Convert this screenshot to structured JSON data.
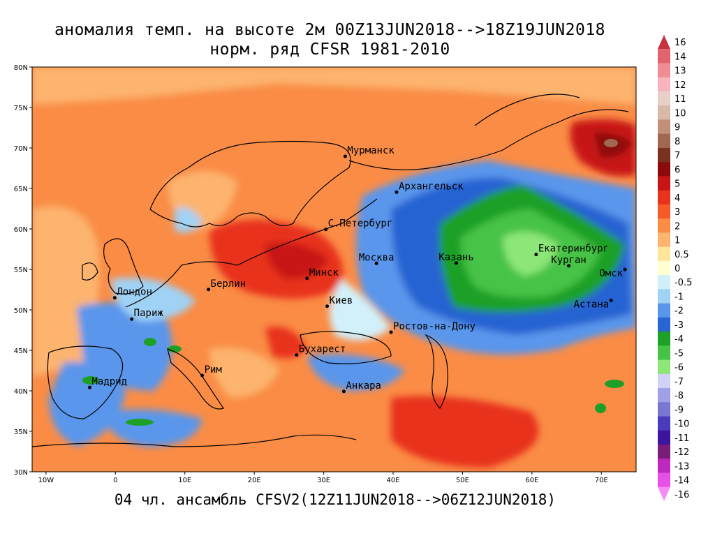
{
  "title_line1": "аномалия темп. на высоте 2м 00Z13JUN2018-->18Z19JUN2018",
  "title_line2": "норм. ряд CFSR 1981-2010",
  "footer": "04 чл. ансамбль CFSV2(12Z11JUN2018-->06Z12JUN2018)",
  "lat_labels": [
    "80N",
    "75N",
    "70N",
    "65N",
    "60N",
    "55N",
    "50N",
    "45N",
    "40N",
    "35N",
    "30N"
  ],
  "lon_labels": [
    "10W",
    "0",
    "10E",
    "20E",
    "30E",
    "40E",
    "50E",
    "60E",
    "70E"
  ],
  "cities": [
    {
      "name": "Мурманск",
      "lon": 33.1,
      "lat": 68.97
    },
    {
      "name": "Архангельск",
      "lon": 40.5,
      "lat": 64.54
    },
    {
      "name": "С.Петербург",
      "lon": 30.3,
      "lat": 59.94
    },
    {
      "name": "Москва",
      "lon": 37.6,
      "lat": 55.75
    },
    {
      "name": "Казань",
      "lon": 49.1,
      "lat": 55.79
    },
    {
      "name": "Екатеринбург",
      "lon": 60.6,
      "lat": 56.84
    },
    {
      "name": "Курган",
      "lon": 65.3,
      "lat": 55.44
    },
    {
      "name": "Омск",
      "lon": 73.4,
      "lat": 54.99
    },
    {
      "name": "Астана",
      "lon": 71.4,
      "lat": 51.17
    },
    {
      "name": "Минск",
      "lon": 27.6,
      "lat": 53.9
    },
    {
      "name": "Берлин",
      "lon": 13.4,
      "lat": 52.52
    },
    {
      "name": "Лондон",
      "lon": -0.1,
      "lat": 51.5
    },
    {
      "name": "Париж",
      "lon": 2.35,
      "lat": 48.86
    },
    {
      "name": "Киев",
      "lon": 30.5,
      "lat": 50.45
    },
    {
      "name": "Ростов-на-Дону",
      "lon": 39.7,
      "lat": 47.24
    },
    {
      "name": "Бухарест",
      "lon": 26.1,
      "lat": 44.43
    },
    {
      "name": "Рим",
      "lon": 12.5,
      "lat": 41.9
    },
    {
      "name": "Мадрид",
      "lon": -3.7,
      "lat": 40.42
    },
    {
      "name": "Анкара",
      "lon": 32.9,
      "lat": 39.93
    }
  ],
  "colorbar": [
    {
      "label": "16",
      "color": "#c8323c"
    },
    {
      "label": "14",
      "color": "#e0646e"
    },
    {
      "label": "13",
      "color": "#f08c96"
    },
    {
      "label": "12",
      "color": "#f8b4bc"
    },
    {
      "label": "11",
      "color": "#e8d0c8"
    },
    {
      "label": "10",
      "color": "#d8b8a8"
    },
    {
      "label": "9",
      "color": "#c09078"
    },
    {
      "label": "8",
      "color": "#a06850"
    },
    {
      "label": "7",
      "color": "#7a3220"
    },
    {
      "label": "6",
      "color": "#8c0a0a"
    },
    {
      "label": "5",
      "color": "#c81414"
    },
    {
      "label": "4",
      "color": "#e8321e"
    },
    {
      "label": "3",
      "color": "#f55a28"
    },
    {
      "label": "2",
      "color": "#fa8c46"
    },
    {
      "label": "1",
      "color": "#fcb46e"
    },
    {
      "label": "0.5",
      "color": "#fde69a"
    },
    {
      "label": "0",
      "color": "#ffffd2"
    },
    {
      "label": "-0.5",
      "color": "#d2f0fa"
    },
    {
      "label": "-1",
      "color": "#a0d2f5"
    },
    {
      "label": "-2",
      "color": "#5a96eb"
    },
    {
      "label": "-3",
      "color": "#2864d2"
    },
    {
      "label": "-4",
      "color": "#1ea028"
    },
    {
      "label": "-5",
      "color": "#46c346"
    },
    {
      "label": "-6",
      "color": "#8ce678"
    },
    {
      "label": "-7",
      "color": "#d2d2f5"
    },
    {
      "label": "-8",
      "color": "#a0a0e6"
    },
    {
      "label": "-9",
      "color": "#7878d2"
    },
    {
      "label": "-10",
      "color": "#4b3cbe"
    },
    {
      "label": "-11",
      "color": "#3c14a0"
    },
    {
      "label": "-12",
      "color": "#781e78"
    },
    {
      "label": "-13",
      "color": "#be28be"
    },
    {
      "label": "-14",
      "color": "#e650e6"
    },
    {
      "label": "-16",
      "color": "#f58cf5"
    }
  ]
}
